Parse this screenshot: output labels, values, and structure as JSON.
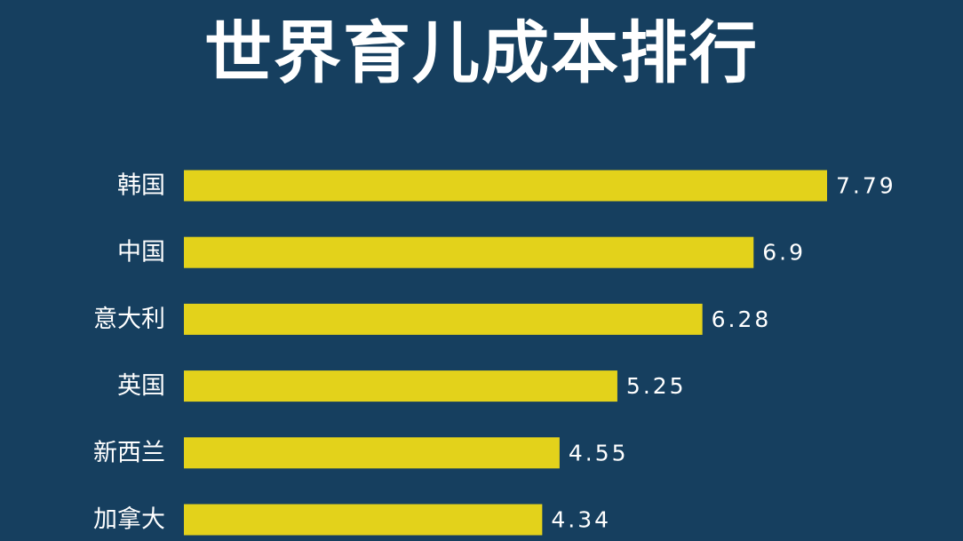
{
  "chart_data": {
    "type": "bar",
    "orientation": "horizontal",
    "title": "世界育儿成本排行",
    "categories": [
      "韩国",
      "中国",
      "意大利",
      "英国",
      "新西兰",
      "加拿大"
    ],
    "values": [
      7.79,
      6.9,
      6.28,
      5.25,
      4.55,
      4.34
    ],
    "value_labels": [
      "7.79",
      "6.9",
      "6.28",
      "5.25",
      "4.55",
      "4.34"
    ],
    "xlim": [
      0,
      7.79
    ],
    "grid": false,
    "legend": "none",
    "colors": {
      "background": "#163f5f",
      "bar": "#e3d21b",
      "text": "#ffffff"
    }
  }
}
